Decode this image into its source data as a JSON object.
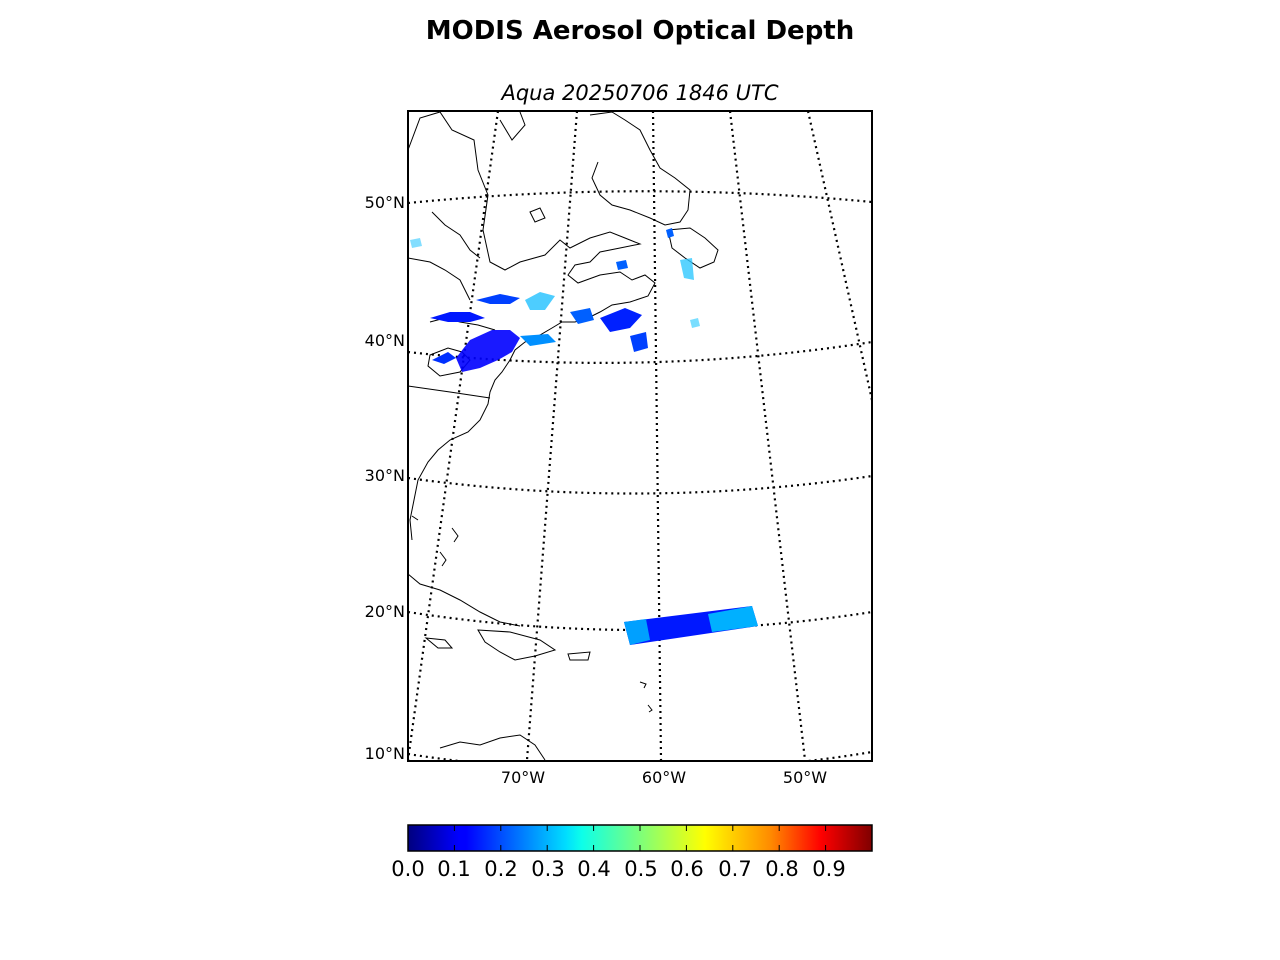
{
  "title": "MODIS Aerosol Optical Depth",
  "subtitle": "Aqua 20250706 1846 UTC",
  "latitude_labels": [
    "50°N",
    "40°N",
    "30°N",
    "20°N",
    "10°N"
  ],
  "longitude_labels": [
    "70°W",
    "60°W",
    "50°W"
  ],
  "colorbar": {
    "colormap": "jet",
    "ticks": [
      "0.0",
      "0.1",
      "0.2",
      "0.3",
      "0.4",
      "0.5",
      "0.6",
      "0.7",
      "0.8",
      "0.9"
    ],
    "range": [
      0.0,
      1.0
    ]
  },
  "colors": {
    "coastline": "#000000",
    "graticule": "#000000",
    "aod_low": "#0000ff",
    "aod_mid": "#00a0ff"
  }
}
